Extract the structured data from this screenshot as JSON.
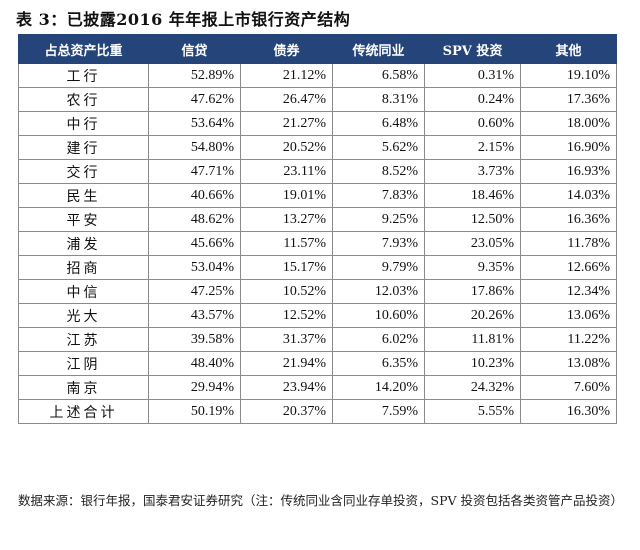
{
  "title": "表 3：已披露2016 年年报上市银行资产结构",
  "table": {
    "headers": [
      "占总资产比重",
      "信贷",
      "债券",
      "传统同业",
      "SPV 投资",
      "其他"
    ],
    "rows": [
      [
        "工行",
        "52.89%",
        "21.12%",
        "6.58%",
        "0.31%",
        "19.10%"
      ],
      [
        "农行",
        "47.62%",
        "26.47%",
        "8.31%",
        "0.24%",
        "17.36%"
      ],
      [
        "中行",
        "53.64%",
        "21.27%",
        "6.48%",
        "0.60%",
        "18.00%"
      ],
      [
        "建行",
        "54.80%",
        "20.52%",
        "5.62%",
        "2.15%",
        "16.90%"
      ],
      [
        "交行",
        "47.71%",
        "23.11%",
        "8.52%",
        "3.73%",
        "16.93%"
      ],
      [
        "民生",
        "40.66%",
        "19.01%",
        "7.83%",
        "18.46%",
        "14.03%"
      ],
      [
        "平安",
        "48.62%",
        "13.27%",
        "9.25%",
        "12.50%",
        "16.36%"
      ],
      [
        "浦发",
        "45.66%",
        "11.57%",
        "7.93%",
        "23.05%",
        "11.78%"
      ],
      [
        "招商",
        "53.04%",
        "15.17%",
        "9.79%",
        "9.35%",
        "12.66%"
      ],
      [
        "中信",
        "47.25%",
        "10.52%",
        "12.03%",
        "17.86%",
        "12.34%"
      ],
      [
        "光大",
        "43.57%",
        "12.52%",
        "10.60%",
        "20.26%",
        "13.06%"
      ],
      [
        "江苏",
        "39.58%",
        "31.37%",
        "6.02%",
        "11.81%",
        "11.22%"
      ],
      [
        "江阴",
        "48.40%",
        "21.94%",
        "6.35%",
        "10.23%",
        "13.08%"
      ],
      [
        "南京",
        "29.94%",
        "23.94%",
        "14.20%",
        "24.32%",
        "7.60%"
      ],
      [
        "上述合计",
        "50.19%",
        "20.37%",
        "7.59%",
        "5.55%",
        "16.30%"
      ]
    ]
  },
  "note": "数据来源：银行年报，国泰君安证券研究（注：传统同业含同业存单投资，SPV 投资包括各类资管产品投资）"
}
